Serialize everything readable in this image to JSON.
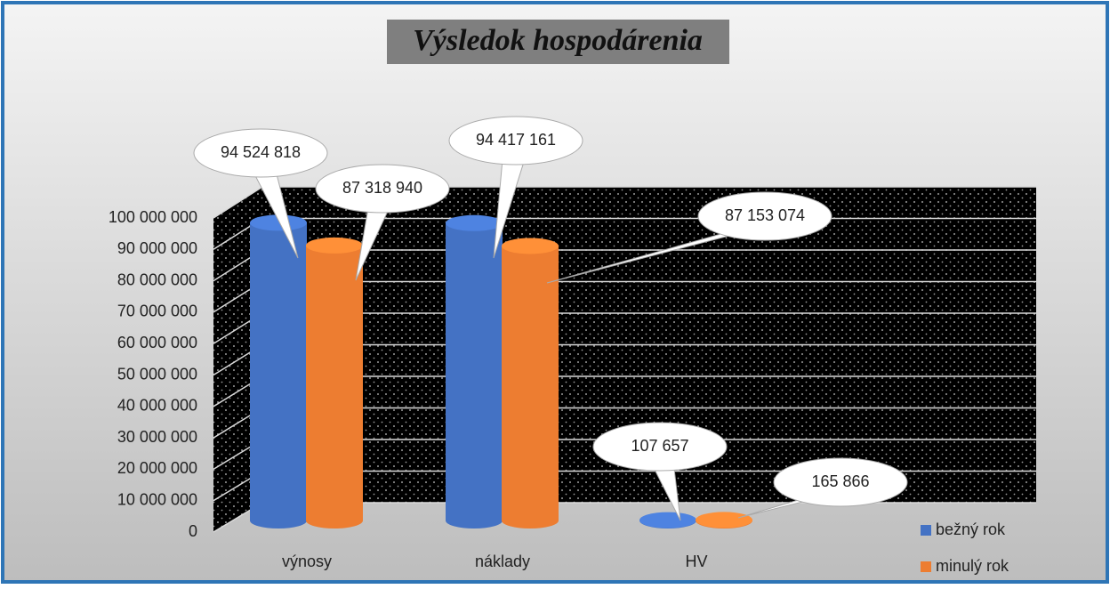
{
  "chart_data": {
    "type": "bar",
    "title": "Výsledok hospodárenia",
    "categories": [
      "výnosy",
      "náklady",
      "HV"
    ],
    "series": [
      {
        "name": "bežný rok",
        "color": "#4472c4",
        "values": [
          94524818,
          94417161,
          107657
        ],
        "value_labels": [
          "94 524 818",
          "94 417 161",
          "107 657"
        ]
      },
      {
        "name": "minulý rok",
        "color": "#ed7d31",
        "values": [
          87318940,
          87153074,
          165866
        ],
        "value_labels": [
          "87 318 940",
          "87 153 074",
          "165 866"
        ]
      }
    ],
    "ylim": [
      0,
      100000000
    ],
    "yticks": [
      {
        "value": 0,
        "label": "0"
      },
      {
        "value": 10000000,
        "label": "10 000 000"
      },
      {
        "value": 20000000,
        "label": "20 000 000"
      },
      {
        "value": 30000000,
        "label": "30 000 000"
      },
      {
        "value": 40000000,
        "label": "40 000 000"
      },
      {
        "value": 50000000,
        "label": "50 000 000"
      },
      {
        "value": 60000000,
        "label": "60 000 000"
      },
      {
        "value": 70000000,
        "label": "70 000 000"
      },
      {
        "value": 80000000,
        "label": "80 000 000"
      },
      {
        "value": 90000000,
        "label": "90 000 000"
      },
      {
        "value": 100000000,
        "label": "100 000 000"
      }
    ],
    "grid": true,
    "legend": "bottom-right"
  }
}
